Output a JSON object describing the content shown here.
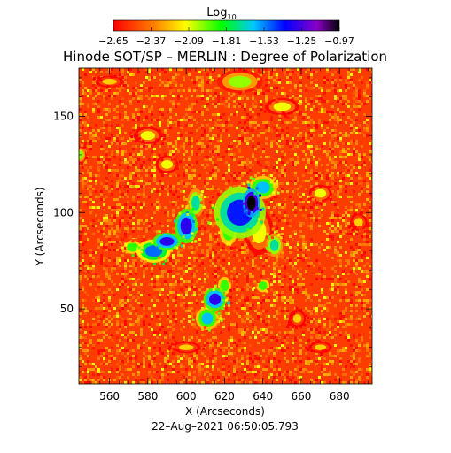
{
  "chart_data": {
    "type": "heatmap",
    "title": "Hinode SOT/SP – MERLIN : Degree of Polarization",
    "xlabel": "X (Arcseconds)",
    "ylabel": "Y (Arcseconds)",
    "timestamp": "22–Aug–2021 06:50:05.793",
    "xlim": [
      544,
      697
    ],
    "ylim": [
      11,
      175
    ],
    "x_ticks": [
      560,
      580,
      600,
      620,
      640,
      660,
      680
    ],
    "y_ticks": [
      50,
      100,
      150
    ],
    "x_tick_labels": [
      "560",
      "580",
      "600",
      "620",
      "640",
      "660",
      "680"
    ],
    "y_tick_labels": [
      "50",
      "100",
      "150"
    ],
    "colorbar": {
      "title_base": "Log",
      "title_sub": "10",
      "range": [
        -2.65,
        -0.97
      ],
      "ticks": [
        -2.65,
        -2.37,
        -2.09,
        -1.81,
        -1.53,
        -1.25,
        -0.97
      ],
      "tick_labels": [
        "−2.65",
        "−2.37",
        "−2.09",
        "−1.81",
        "−1.53",
        "−1.25",
        "−0.97"
      ],
      "colormap": "rainbow"
    },
    "background_level": -2.6,
    "features": [
      {
        "x": 634,
        "y": 105,
        "value": -0.97,
        "rx": 3,
        "ry": 5
      },
      {
        "x": 628,
        "y": 100,
        "value": -1.4,
        "rx": 9,
        "ry": 9
      },
      {
        "x": 640,
        "y": 113,
        "value": -1.6,
        "rx": 5,
        "ry": 4
      },
      {
        "x": 622,
        "y": 90,
        "value": -1.9,
        "rx": 4,
        "ry": 6
      },
      {
        "x": 638,
        "y": 90,
        "value": -2.1,
        "rx": 5,
        "ry": 8
      },
      {
        "x": 600,
        "y": 93,
        "value": -1.3,
        "rx": 4,
        "ry": 6
      },
      {
        "x": 590,
        "y": 85,
        "value": -1.3,
        "rx": 5,
        "ry": 3
      },
      {
        "x": 583,
        "y": 80,
        "value": -1.5,
        "rx": 6,
        "ry": 4
      },
      {
        "x": 605,
        "y": 105,
        "value": -1.7,
        "rx": 3,
        "ry": 5
      },
      {
        "x": 572,
        "y": 82,
        "value": -1.9,
        "rx": 4,
        "ry": 3
      },
      {
        "x": 615,
        "y": 55,
        "value": -1.3,
        "rx": 4,
        "ry": 4
      },
      {
        "x": 611,
        "y": 45,
        "value": -1.6,
        "rx": 4,
        "ry": 4
      },
      {
        "x": 620,
        "y": 62,
        "value": -1.9,
        "rx": 3,
        "ry": 4
      },
      {
        "x": 646,
        "y": 83,
        "value": -1.7,
        "rx": 3,
        "ry": 4
      },
      {
        "x": 640,
        "y": 62,
        "value": -1.9,
        "rx": 3,
        "ry": 3
      },
      {
        "x": 628,
        "y": 168,
        "value": -2.0,
        "rx": 8,
        "ry": 4
      },
      {
        "x": 650,
        "y": 155,
        "value": -2.1,
        "rx": 6,
        "ry": 3
      },
      {
        "x": 580,
        "y": 140,
        "value": -2.1,
        "rx": 5,
        "ry": 3
      },
      {
        "x": 670,
        "y": 110,
        "value": -2.1,
        "rx": 4,
        "ry": 3
      },
      {
        "x": 560,
        "y": 168,
        "value": -2.2,
        "rx": 5,
        "ry": 2
      },
      {
        "x": 690,
        "y": 95,
        "value": -2.2,
        "rx": 3,
        "ry": 3
      },
      {
        "x": 600,
        "y": 30,
        "value": -2.2,
        "rx": 5,
        "ry": 2
      },
      {
        "x": 670,
        "y": 30,
        "value": -2.2,
        "rx": 4,
        "ry": 2
      },
      {
        "x": 658,
        "y": 45,
        "value": -2.2,
        "rx": 3,
        "ry": 3
      },
      {
        "x": 590,
        "y": 125,
        "value": -2.1,
        "rx": 4,
        "ry": 3
      },
      {
        "x": 545,
        "y": 130,
        "value": -2.0,
        "rx": 2,
        "ry": 3
      }
    ]
  }
}
